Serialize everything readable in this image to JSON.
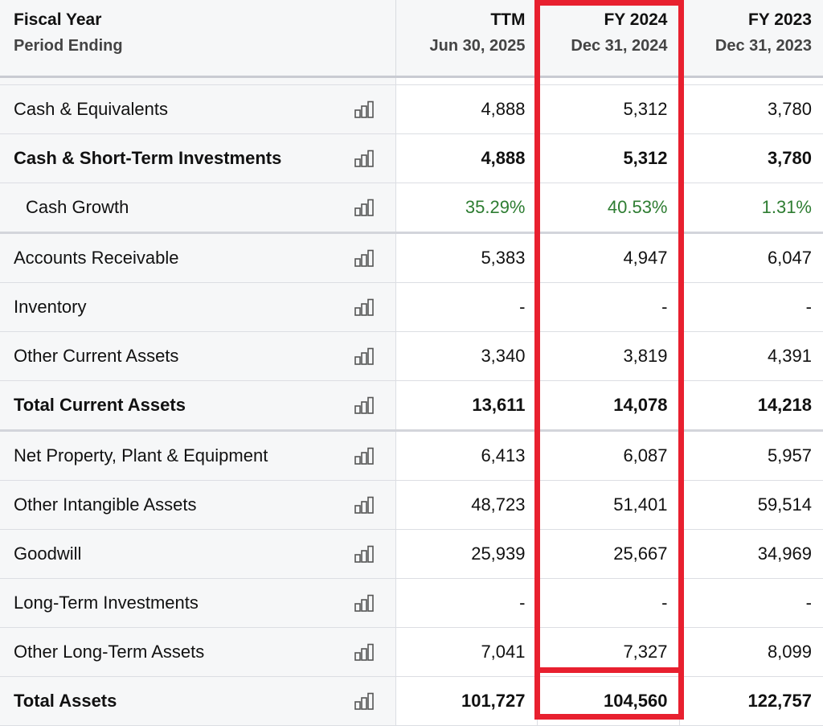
{
  "header": {
    "label_top": "Fiscal Year",
    "label_bottom": "Period Ending",
    "columns": [
      {
        "title": "TTM",
        "date": "Jun 30, 2025"
      },
      {
        "title": "FY 2024",
        "date": "Dec 31, 2024"
      },
      {
        "title": "FY 2023",
        "date": "Dec 31, 2023"
      }
    ]
  },
  "rows": [
    {
      "label": "Cash & Equivalents",
      "values": [
        "4,888",
        "5,312",
        "3,780"
      ]
    },
    {
      "label": "Cash & Short-Term Investments",
      "values": [
        "4,888",
        "5,312",
        "3,780"
      ]
    },
    {
      "label": "Cash Growth",
      "values": [
        "35.29%",
        "40.53%",
        "1.31%"
      ]
    },
    {
      "label": "Accounts Receivable",
      "values": [
        "5,383",
        "4,947",
        "6,047"
      ]
    },
    {
      "label": "Inventory",
      "values": [
        "-",
        "-",
        "-"
      ]
    },
    {
      "label": "Other Current Assets",
      "values": [
        "3,340",
        "3,819",
        "4,391"
      ]
    },
    {
      "label": "Total Current Assets",
      "values": [
        "13,611",
        "14,078",
        "14,218"
      ]
    },
    {
      "label": "Net Property, Plant & Equipment",
      "values": [
        "6,413",
        "6,087",
        "5,957"
      ]
    },
    {
      "label": "Other Intangible Assets",
      "values": [
        "48,723",
        "51,401",
        "59,514"
      ]
    },
    {
      "label": "Goodwill",
      "values": [
        "25,939",
        "25,667",
        "34,969"
      ]
    },
    {
      "label": "Long-Term Investments",
      "values": [
        "-",
        "-",
        "-"
      ]
    },
    {
      "label": "Other Long-Term Assets",
      "values": [
        "7,041",
        "7,327",
        "8,099"
      ]
    },
    {
      "label": "Total Assets",
      "values": [
        "101,727",
        "104,560",
        "122,757"
      ]
    }
  ],
  "row_icon": "bar-chart-icon",
  "colors": {
    "highlight": "#e8202f",
    "positive": "#2e7d32",
    "label_bg": "#f6f7f8"
  }
}
